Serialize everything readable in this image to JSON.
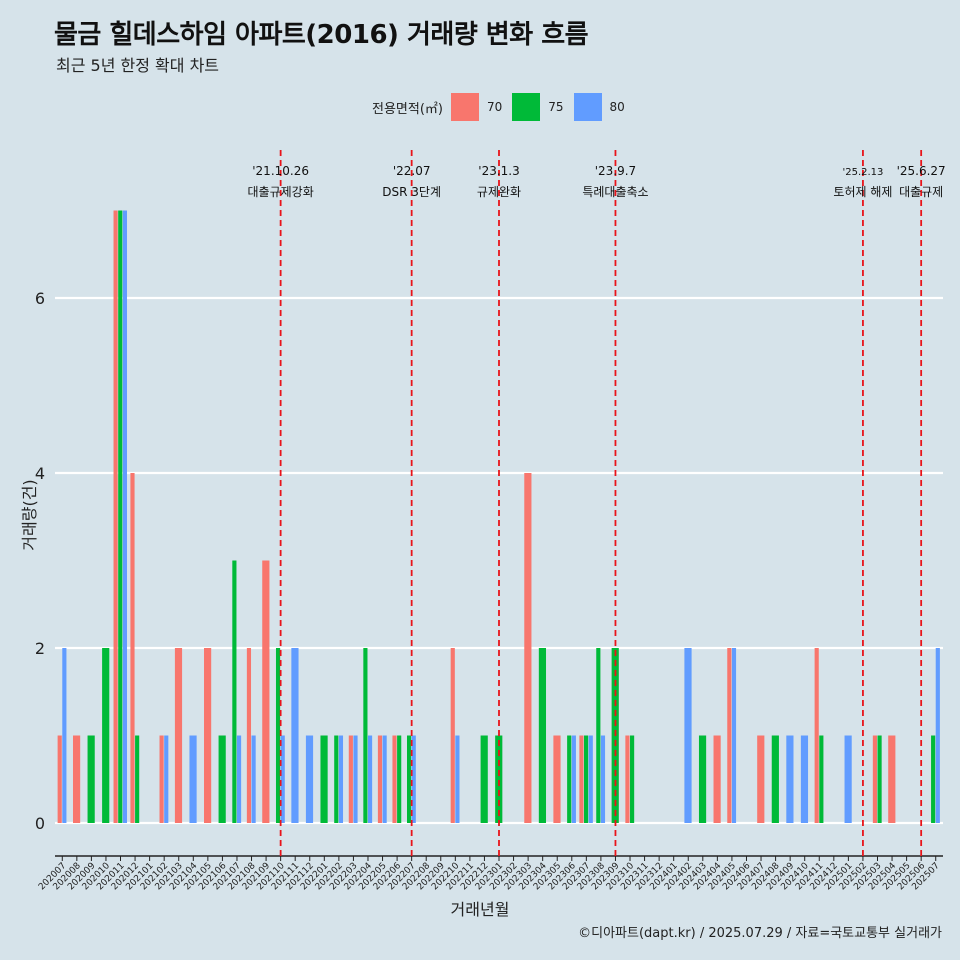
{
  "title": "물금 힐데스하임 아파트(2016) 거래량 변화 흐름",
  "subtitle": "최근 5년 한정 확대 차트",
  "legend": {
    "title": "전용면적(㎡)",
    "items": [
      {
        "label": "70",
        "color": "#f8766d"
      },
      {
        "label": "75",
        "color": "#00ba38"
      },
      {
        "label": "80",
        "color": "#619cff"
      }
    ]
  },
  "caption": "©디아파트(dapt.kr) / 2025.07.29 / 자료=국토교통부 실거래가",
  "chart_data": {
    "type": "bar",
    "xlabel": "거래년월",
    "ylabel": "거래량(건)",
    "ylim": [
      0,
      7
    ],
    "yticks": [
      0,
      2,
      4,
      6
    ],
    "grid": true,
    "legend_position": "top",
    "categories": [
      "202007",
      "202008",
      "202009",
      "202010",
      "202011",
      "202012",
      "202101",
      "202102",
      "202103",
      "202104",
      "202105",
      "202106",
      "202107",
      "202108",
      "202109",
      "202110",
      "202111",
      "202112",
      "202201",
      "202202",
      "202203",
      "202204",
      "202205",
      "202206",
      "202207",
      "202208",
      "202209",
      "202210",
      "202211",
      "202212",
      "202301",
      "202302",
      "202303",
      "202304",
      "202305",
      "202306",
      "202307",
      "202308",
      "202309",
      "202310",
      "202311",
      "202312",
      "202401",
      "202402",
      "202403",
      "202404",
      "202405",
      "202406",
      "202407",
      "202408",
      "202409",
      "202410",
      "202411",
      "202412",
      "202501",
      "202502",
      "202503",
      "202504",
      "202505",
      "202506",
      "202507"
    ],
    "series": [
      {
        "name": "70",
        "color": "#f8766d",
        "values": [
          1,
          1,
          0,
          0,
          7,
          4,
          0,
          1,
          2,
          0,
          2,
          0,
          0,
          2,
          3,
          0,
          0,
          0,
          0,
          0,
          1,
          0,
          1,
          1,
          0,
          0,
          0,
          2,
          0,
          0,
          0,
          0,
          4,
          0,
          1,
          0,
          1,
          0,
          0,
          1,
          0,
          0,
          0,
          0,
          0,
          1,
          2,
          0,
          1,
          0,
          0,
          0,
          2,
          0,
          0,
          0,
          1,
          1,
          0,
          0,
          0
        ]
      },
      {
        "name": "75",
        "color": "#00ba38",
        "values": [
          0,
          0,
          1,
          2,
          7,
          1,
          0,
          0,
          0,
          0,
          0,
          1,
          3,
          0,
          0,
          2,
          0,
          0,
          1,
          1,
          0,
          2,
          0,
          1,
          1,
          0,
          0,
          0,
          0,
          1,
          1,
          0,
          0,
          2,
          0,
          1,
          1,
          2,
          2,
          1,
          0,
          0,
          0,
          0,
          1,
          0,
          0,
          0,
          0,
          1,
          0,
          0,
          1,
          0,
          0,
          0,
          1,
          0,
          0,
          0,
          1
        ]
      },
      {
        "name": "80",
        "color": "#619cff",
        "values": [
          2,
          0,
          0,
          0,
          7,
          0,
          0,
          1,
          0,
          1,
          0,
          0,
          1,
          1,
          0,
          1,
          2,
          1,
          0,
          1,
          1,
          1,
          1,
          0,
          1,
          0,
          0,
          1,
          0,
          0,
          0,
          0,
          0,
          0,
          0,
          1,
          1,
          1,
          0,
          0,
          0,
          0,
          0,
          2,
          0,
          0,
          2,
          0,
          0,
          0,
          1,
          1,
          0,
          0,
          1,
          0,
          0,
          0,
          0,
          0,
          2
        ]
      }
    ],
    "annotations": [
      {
        "date": "'21.10.26",
        "label": "대출규제강화",
        "category": "202110"
      },
      {
        "date": "'22.07",
        "label": "DSR 3단계",
        "category": "202207"
      },
      {
        "date": "'23.1.3",
        "label": "규제완화",
        "category": "202301"
      },
      {
        "date": "'23.9.7",
        "label": "특례대출축소",
        "category": "202309"
      },
      {
        "date": "'25.2.13",
        "label": "토허제 해제",
        "category": "202502"
      },
      {
        "date": "'25.6.27",
        "label": "대출규제",
        "category": "202506"
      }
    ]
  }
}
